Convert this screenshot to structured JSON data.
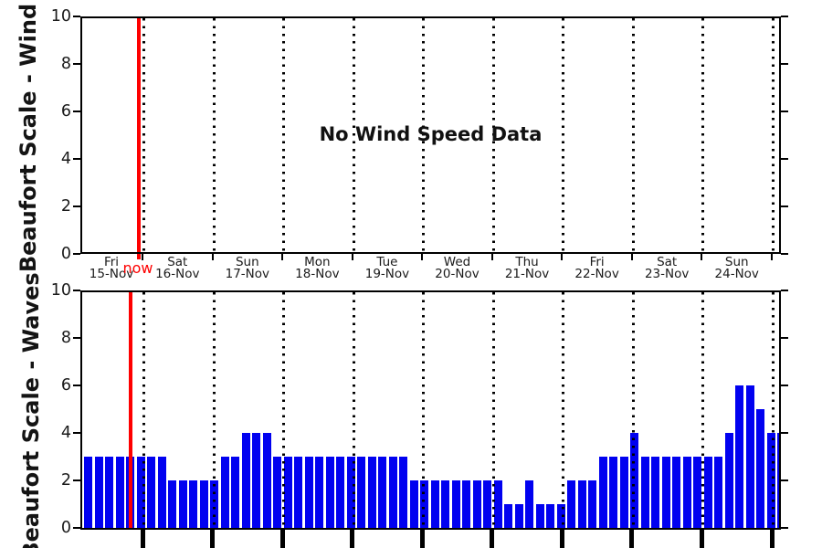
{
  "colors": {
    "bar_blue": "#0101f0",
    "now_red": "#fe0000",
    "axis_black": "#000000",
    "text_black": "#1a1a1a"
  },
  "top_chart": {
    "y_axis_label": "Beaufort Scale - Wind",
    "y_ticks": [
      0,
      2,
      4,
      6,
      8,
      10
    ],
    "ylim": [
      0,
      10
    ],
    "no_data_message": "No Wind Speed Data",
    "now_label": "now",
    "days": [
      {
        "name": "Fri",
        "date": "15-Nov"
      },
      {
        "name": "Sat",
        "date": "16-Nov"
      },
      {
        "name": "Sun",
        "date": "17-Nov"
      },
      {
        "name": "Mon",
        "date": "18-Nov"
      },
      {
        "name": "Tue",
        "date": "19-Nov"
      },
      {
        "name": "Wed",
        "date": "20-Nov"
      },
      {
        "name": "Thu",
        "date": "21-Nov"
      },
      {
        "name": "Fri",
        "date": "22-Nov"
      },
      {
        "name": "Sat",
        "date": "23-Nov"
      },
      {
        "name": "Sun",
        "date": "24-Nov"
      }
    ]
  },
  "bottom_chart": {
    "y_axis_label": "Beaufort Scale - Waves",
    "y_ticks": [
      0,
      2,
      4,
      6,
      8,
      10
    ],
    "ylim": [
      0,
      10
    ],
    "bar_values": [
      3,
      3,
      3,
      3,
      3,
      3,
      3,
      3,
      2,
      2,
      2,
      2,
      2,
      3,
      3,
      4,
      4,
      4,
      3,
      3,
      3,
      3,
      3,
      3,
      3,
      3,
      3,
      3,
      3,
      3,
      3,
      2,
      2,
      2,
      2,
      2,
      2,
      2,
      2,
      2,
      1,
      1,
      2,
      1,
      1,
      1,
      2,
      2,
      2,
      3,
      3,
      3,
      4,
      3,
      3,
      3,
      3,
      3,
      3,
      3,
      3,
      4,
      6,
      6,
      5,
      4,
      4
    ]
  },
  "chart_data": [
    {
      "type": "line",
      "title": "",
      "ylabel": "Beaufort Scale - Wind",
      "ylim": [
        0,
        10
      ],
      "y_ticks": [
        0,
        2,
        4,
        6,
        8,
        10
      ],
      "categories": [
        "Fri 15-Nov",
        "Sat 16-Nov",
        "Sun 17-Nov",
        "Mon 18-Nov",
        "Tue 19-Nov",
        "Wed 20-Nov",
        "Thu 21-Nov",
        "Fri 22-Nov",
        "Sat 23-Nov",
        "Sun 24-Nov"
      ],
      "series": [],
      "annotations": [
        "No Wind Speed Data",
        "now marker near end of Fri 15-Nov"
      ],
      "grid": "vertical dotted lines at each day boundary",
      "legend_position": "none"
    },
    {
      "type": "bar",
      "title": "",
      "ylabel": "Beaufort Scale - Waves",
      "ylim": [
        0,
        10
      ],
      "y_ticks": [
        0,
        2,
        4,
        6,
        8,
        10
      ],
      "x_range": [
        "Fri 15-Nov",
        "Sun 24-Nov"
      ],
      "values": [
        3,
        3,
        3,
        3,
        3,
        3,
        3,
        3,
        2,
        2,
        2,
        2,
        2,
        3,
        3,
        4,
        4,
        4,
        3,
        3,
        3,
        3,
        3,
        3,
        3,
        3,
        3,
        3,
        3,
        3,
        3,
        2,
        2,
        2,
        2,
        2,
        2,
        2,
        2,
        2,
        1,
        1,
        2,
        1,
        1,
        1,
        2,
        2,
        2,
        3,
        3,
        3,
        4,
        3,
        3,
        3,
        3,
        3,
        3,
        3,
        3,
        4,
        6,
        6,
        5,
        4,
        4
      ],
      "bar_color": "#0101f0",
      "annotations": [
        "now marker near end of Fri 15-Nov (red vertical line)"
      ],
      "grid": "vertical dotted lines at each day boundary",
      "legend_position": "none"
    }
  ]
}
